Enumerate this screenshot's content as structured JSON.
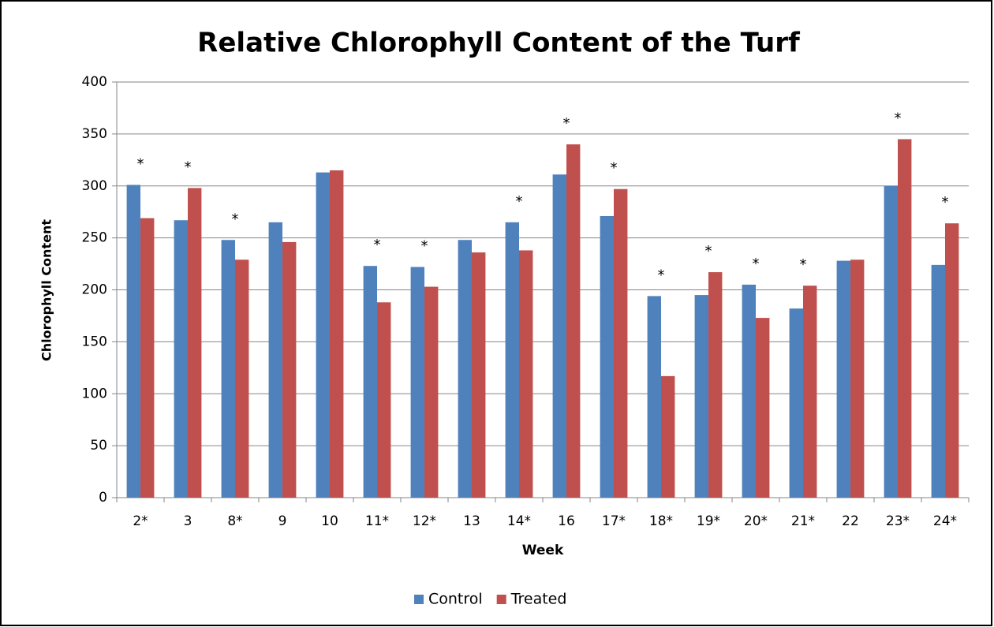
{
  "chart_data": {
    "type": "bar",
    "title": "Relative Chlorophyll Content of the Turf",
    "x_label": "Week",
    "y_label": "Chlorophyll Content",
    "categories": [
      "2*",
      "3",
      "8*",
      "9",
      "10",
      "11*",
      "12*",
      "13",
      "14*",
      "16",
      "17*",
      "18*",
      "19*",
      "20*",
      "21*",
      "22",
      "23*",
      "24*"
    ],
    "series": [
      {
        "name": "Control",
        "color": "#4f81bd",
        "values": [
          301,
          267,
          248,
          265,
          313,
          223,
          222,
          248,
          265,
          311,
          271,
          194,
          195,
          205,
          182,
          228,
          300,
          224
        ]
      },
      {
        "name": "Treated",
        "color": "#c0504d",
        "values": [
          269,
          298,
          229,
          246,
          315,
          188,
          203,
          236,
          238,
          340,
          297,
          117,
          217,
          173,
          204,
          229,
          345,
          264
        ]
      }
    ],
    "annotations": [
      {
        "x": "2*",
        "text": "*"
      },
      {
        "x": "3",
        "text": "*"
      },
      {
        "x": "8*",
        "text": "*"
      },
      {
        "x": "11*",
        "text": "*"
      },
      {
        "x": "12*",
        "text": "*"
      },
      {
        "x": "14*",
        "text": "*"
      },
      {
        "x": "16",
        "text": "*"
      },
      {
        "x": "17*",
        "text": "*"
      },
      {
        "x": "18*",
        "text": "*"
      },
      {
        "x": "19*",
        "text": "*"
      },
      {
        "x": "20*",
        "text": "*"
      },
      {
        "x": "21*",
        "text": "*"
      },
      {
        "x": "23*",
        "text": "*"
      },
      {
        "x": "24*",
        "text": "*"
      }
    ],
    "ylim": [
      0,
      400
    ],
    "yticks": [
      0,
      50,
      100,
      150,
      200,
      250,
      300,
      350,
      400
    ],
    "grid": true,
    "legend": "bottom"
  }
}
